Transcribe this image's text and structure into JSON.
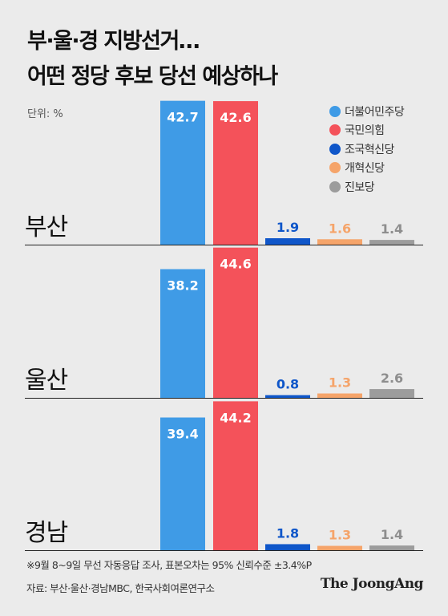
{
  "title": {
    "line1": "부·울·경 지방선거…",
    "line2": "어떤 정당 후보 당선 예상하나"
  },
  "unit": "단위: %",
  "colors": {
    "background": "#ebebeb",
    "더불어민주당": "#3f9be6",
    "국민의힘": "#f4525a",
    "조국혁신당": "#0f56c9",
    "개혁신당": "#f5a46a",
    "진보당": "#9c9c9c"
  },
  "chart_data": {
    "type": "bar",
    "orientation": "vertical",
    "grouped_by": "region",
    "categories": [
      "부산",
      "울산",
      "경남"
    ],
    "series": [
      {
        "name": "더불어민주당",
        "color": "#3f9be6",
        "values": [
          42.7,
          38.2,
          39.4
        ]
      },
      {
        "name": "국민의힘",
        "color": "#f4525a",
        "values": [
          42.6,
          44.6,
          44.2
        ]
      },
      {
        "name": "조국혁신당",
        "color": "#0f56c9",
        "values": [
          1.9,
          0.8,
          1.8
        ]
      },
      {
        "name": "개혁신당",
        "color": "#f5a46a",
        "values": [
          1.6,
          1.3,
          1.3
        ]
      },
      {
        "name": "진보당",
        "color": "#9c9c9c",
        "values": [
          1.4,
          2.6,
          1.4
        ]
      }
    ],
    "unit": "%",
    "legend_position": "top-right",
    "grid": false,
    "data_labels": true,
    "y_range": [
      0,
      45
    ]
  },
  "footnote": "※9월 8~9일 무선 자동응답 조사, 표본오차는 95% 신뢰수준 ±3.4%P",
  "source": "자료: 부산·울산·경남MBC, 한국사회여론연구소",
  "logo": "The JoongAng"
}
